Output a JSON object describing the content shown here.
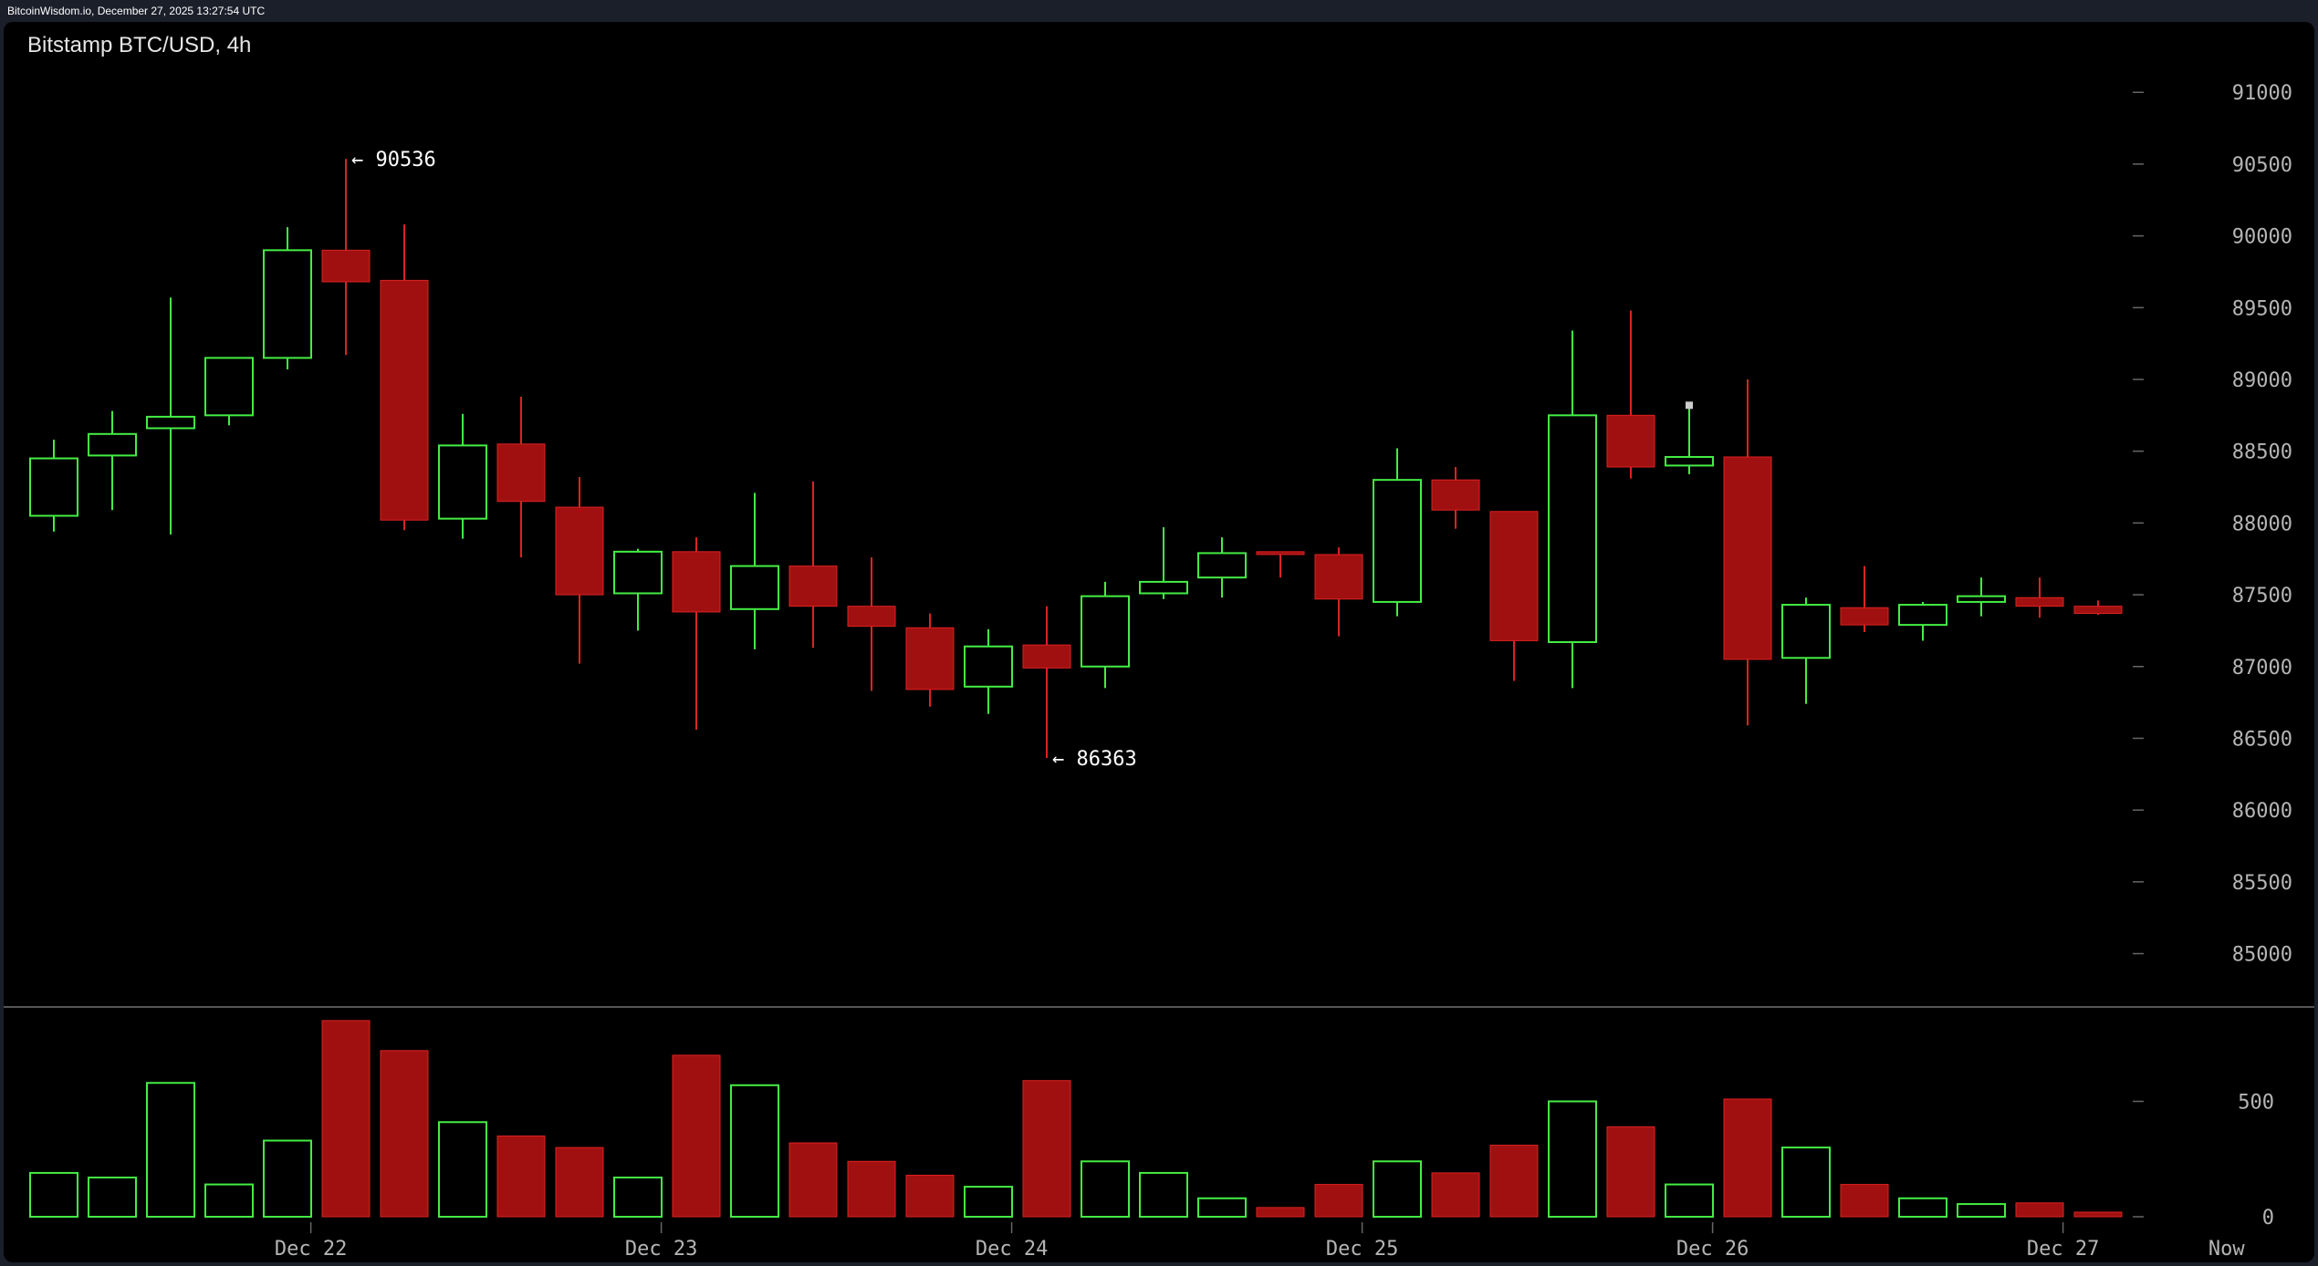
{
  "header": {
    "source_line": "BitcoinWisdom.io, December 27, 2025 13:27:54 UTC"
  },
  "colors": {
    "up": "#44ee44",
    "down": "#a01010",
    "down_wick": "#dd2222",
    "background": "#000000",
    "axis_text": "#b5b5b5"
  },
  "chart_data": {
    "type": "candlestick",
    "title": "Bitstamp BTC/USD, 4h",
    "price_axis": {
      "ylim": [
        84800,
        91300
      ],
      "ticks": [
        85000,
        85500,
        86000,
        86500,
        87000,
        87500,
        88000,
        88500,
        89000,
        89500,
        90000,
        90500,
        91000
      ]
    },
    "volume_axis": {
      "ylim": [
        0,
        900
      ],
      "ticks": [
        0,
        500
      ]
    },
    "x_labels": [
      {
        "text": "Dec 22",
        "index": 4.4
      },
      {
        "text": "Dec 23",
        "index": 10.4
      },
      {
        "text": "Dec 24",
        "index": 16.4
      },
      {
        "text": "Dec 25",
        "index": 22.4
      },
      {
        "text": "Dec 26",
        "index": 28.4
      },
      {
        "text": "Dec 27",
        "index": 34.4
      },
      {
        "text": "Now",
        "index": 37.2
      }
    ],
    "annotations": [
      {
        "text": "← 90536",
        "index": 5,
        "price": 90536
      },
      {
        "text": "← 86363",
        "index": 17,
        "price": 86363
      }
    ],
    "candles": [
      {
        "o": 88050,
        "h": 88580,
        "l": 87940,
        "c": 88450,
        "v": 190
      },
      {
        "o": 88470,
        "h": 88780,
        "l": 88090,
        "c": 88620,
        "v": 170
      },
      {
        "o": 88660,
        "h": 89570,
        "l": 87920,
        "c": 88740,
        "v": 580
      },
      {
        "o": 88750,
        "h": 89150,
        "l": 88680,
        "c": 89150,
        "v": 140
      },
      {
        "o": 89150,
        "h": 90060,
        "l": 89070,
        "c": 89900,
        "v": 330
      },
      {
        "o": 89900,
        "h": 90536,
        "l": 89170,
        "c": 89680,
        "v": 850
      },
      {
        "o": 89690,
        "h": 90080,
        "l": 87950,
        "c": 88020,
        "v": 720
      },
      {
        "o": 88030,
        "h": 88760,
        "l": 87890,
        "c": 88540,
        "v": 410
      },
      {
        "o": 88550,
        "h": 88880,
        "l": 87760,
        "c": 88150,
        "v": 350
      },
      {
        "o": 88110,
        "h": 88320,
        "l": 87020,
        "c": 87500,
        "v": 300
      },
      {
        "o": 87510,
        "h": 87820,
        "l": 87250,
        "c": 87800,
        "v": 170
      },
      {
        "o": 87800,
        "h": 87900,
        "l": 86560,
        "c": 87380,
        "v": 700
      },
      {
        "o": 87400,
        "h": 88210,
        "l": 87120,
        "c": 87700,
        "v": 570
      },
      {
        "o": 87700,
        "h": 88290,
        "l": 87130,
        "c": 87420,
        "v": 320
      },
      {
        "o": 87420,
        "h": 87760,
        "l": 86830,
        "c": 87280,
        "v": 240
      },
      {
        "o": 87270,
        "h": 87370,
        "l": 86720,
        "c": 86840,
        "v": 180
      },
      {
        "o": 86860,
        "h": 87260,
        "l": 86670,
        "c": 87140,
        "v": 130
      },
      {
        "o": 87150,
        "h": 87420,
        "l": 86363,
        "c": 86990,
        "v": 590
      },
      {
        "o": 87000,
        "h": 87590,
        "l": 86850,
        "c": 87490,
        "v": 240
      },
      {
        "o": 87510,
        "h": 87970,
        "l": 87470,
        "c": 87590,
        "v": 190
      },
      {
        "o": 87620,
        "h": 87900,
        "l": 87480,
        "c": 87790,
        "v": 80
      },
      {
        "o": 87800,
        "h": 87800,
        "l": 87620,
        "c": 87780,
        "v": 40
      },
      {
        "o": 87780,
        "h": 87830,
        "l": 87210,
        "c": 87470,
        "v": 140
      },
      {
        "o": 87450,
        "h": 88520,
        "l": 87350,
        "c": 88300,
        "v": 240
      },
      {
        "o": 88300,
        "h": 88390,
        "l": 87960,
        "c": 88090,
        "v": 190
      },
      {
        "o": 88080,
        "h": 88080,
        "l": 86900,
        "c": 87180,
        "v": 310
      },
      {
        "o": 87170,
        "h": 89340,
        "l": 86850,
        "c": 88750,
        "v": 500
      },
      {
        "o": 88750,
        "h": 89480,
        "l": 88310,
        "c": 88390,
        "v": 390
      },
      {
        "o": 88400,
        "h": 88820,
        "l": 88340,
        "c": 88460,
        "v": 140
      },
      {
        "o": 88460,
        "h": 89000,
        "l": 86590,
        "c": 87050,
        "v": 510
      },
      {
        "o": 87060,
        "h": 87480,
        "l": 86740,
        "c": 87430,
        "v": 300
      },
      {
        "o": 87410,
        "h": 87700,
        "l": 87240,
        "c": 87290,
        "v": 140
      },
      {
        "o": 87290,
        "h": 87450,
        "l": 87180,
        "c": 87430,
        "v": 80
      },
      {
        "o": 87450,
        "h": 87620,
        "l": 87350,
        "c": 87490,
        "v": 55
      },
      {
        "o": 87480,
        "h": 87620,
        "l": 87340,
        "c": 87420,
        "v": 60
      },
      {
        "o": 87420,
        "h": 87460,
        "l": 87360,
        "c": 87370,
        "v": 20
      }
    ]
  }
}
